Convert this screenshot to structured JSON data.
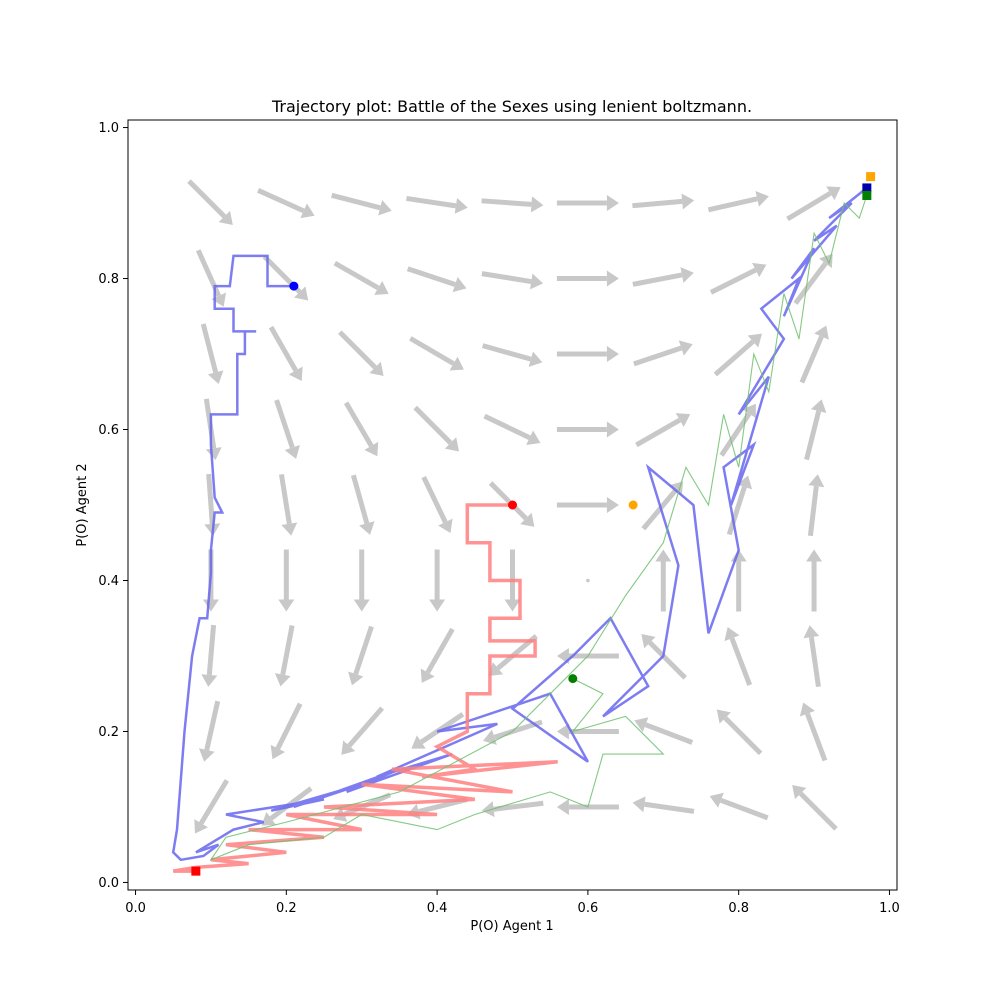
{
  "chart_data": {
    "type": "line",
    "title": "Trajectory plot: Battle of the Sexes using lenient boltzmann.",
    "xlabel": "P(O) Agent 1",
    "ylabel": "P(O) Agent 2",
    "xlim": [
      -0.01,
      1.01
    ],
    "ylim": [
      -0.01,
      1.01
    ],
    "x_ticks": [
      "0.0",
      "0.2",
      "0.4",
      "0.6",
      "0.8",
      "1.0"
    ],
    "y_ticks": [
      "0.0",
      "0.2",
      "0.4",
      "0.6",
      "0.8",
      "1.0"
    ],
    "grid": false,
    "legend": "none",
    "quiver_color": "#c8c8c8",
    "series": [
      {
        "color": "#6666ee",
        "start": [
          0.21,
          0.79
        ],
        "end": [
          0.97,
          0.92
        ],
        "points": [
          [
            0.21,
            0.79
          ],
          [
            0.175,
            0.79
          ],
          [
            0.175,
            0.83
          ],
          [
            0.13,
            0.83
          ],
          [
            0.125,
            0.79
          ],
          [
            0.105,
            0.79
          ],
          [
            0.105,
            0.76
          ],
          [
            0.13,
            0.76
          ],
          [
            0.13,
            0.73
          ],
          [
            0.16,
            0.73
          ],
          [
            0.145,
            0.73
          ],
          [
            0.145,
            0.7
          ],
          [
            0.135,
            0.7
          ],
          [
            0.135,
            0.62
          ],
          [
            0.1,
            0.62
          ],
          [
            0.1,
            0.58
          ],
          [
            0.105,
            0.51
          ],
          [
            0.115,
            0.49
          ],
          [
            0.105,
            0.49
          ],
          [
            0.1,
            0.44
          ],
          [
            0.1,
            0.41
          ],
          [
            0.095,
            0.35
          ],
          [
            0.085,
            0.35
          ],
          [
            0.075,
            0.3
          ],
          [
            0.065,
            0.2
          ],
          [
            0.055,
            0.07
          ],
          [
            0.05,
            0.04
          ],
          [
            0.06,
            0.03
          ],
          [
            0.09,
            0.035
          ],
          [
            0.11,
            0.05
          ],
          [
            0.08,
            0.04
          ],
          [
            0.13,
            0.07
          ],
          [
            0.17,
            0.08
          ],
          [
            0.12,
            0.09
          ],
          [
            0.25,
            0.11
          ],
          [
            0.18,
            0.095
          ],
          [
            0.3,
            0.13
          ],
          [
            0.21,
            0.1
          ],
          [
            0.35,
            0.15
          ],
          [
            0.28,
            0.12
          ],
          [
            0.42,
            0.17
          ],
          [
            0.32,
            0.14
          ],
          [
            0.48,
            0.21
          ],
          [
            0.4,
            0.2
          ],
          [
            0.55,
            0.25
          ],
          [
            0.6,
            0.16
          ],
          [
            0.5,
            0.23
          ],
          [
            0.58,
            0.3
          ],
          [
            0.63,
            0.35
          ],
          [
            0.68,
            0.26
          ],
          [
            0.62,
            0.22
          ],
          [
            0.7,
            0.3
          ],
          [
            0.72,
            0.42
          ],
          [
            0.68,
            0.55
          ],
          [
            0.74,
            0.5
          ],
          [
            0.76,
            0.33
          ],
          [
            0.8,
            0.44
          ],
          [
            0.78,
            0.55
          ],
          [
            0.82,
            0.58
          ],
          [
            0.79,
            0.5
          ],
          [
            0.84,
            0.67
          ],
          [
            0.8,
            0.62
          ],
          [
            0.86,
            0.72
          ],
          [
            0.83,
            0.76
          ],
          [
            0.88,
            0.8
          ],
          [
            0.86,
            0.75
          ],
          [
            0.9,
            0.84
          ],
          [
            0.87,
            0.8
          ],
          [
            0.93,
            0.87
          ],
          [
            0.9,
            0.85
          ],
          [
            0.95,
            0.9
          ],
          [
            0.92,
            0.88
          ],
          [
            0.97,
            0.92
          ]
        ]
      },
      {
        "color": "#ff8080",
        "start": [
          0.5,
          0.5
        ],
        "end": [
          0.08,
          0.015
        ],
        "points": [
          [
            0.5,
            0.5
          ],
          [
            0.44,
            0.5
          ],
          [
            0.44,
            0.45
          ],
          [
            0.47,
            0.45
          ],
          [
            0.47,
            0.4
          ],
          [
            0.51,
            0.4
          ],
          [
            0.51,
            0.35
          ],
          [
            0.47,
            0.35
          ],
          [
            0.47,
            0.32
          ],
          [
            0.53,
            0.32
          ],
          [
            0.53,
            0.3
          ],
          [
            0.47,
            0.3
          ],
          [
            0.47,
            0.25
          ],
          [
            0.44,
            0.25
          ],
          [
            0.44,
            0.2
          ],
          [
            0.4,
            0.18
          ],
          [
            0.45,
            0.15
          ],
          [
            0.38,
            0.14
          ],
          [
            0.56,
            0.16
          ],
          [
            0.34,
            0.15
          ],
          [
            0.5,
            0.12
          ],
          [
            0.3,
            0.13
          ],
          [
            0.45,
            0.11
          ],
          [
            0.25,
            0.1
          ],
          [
            0.4,
            0.09
          ],
          [
            0.2,
            0.09
          ],
          [
            0.3,
            0.07
          ],
          [
            0.15,
            0.07
          ],
          [
            0.25,
            0.06
          ],
          [
            0.12,
            0.05
          ],
          [
            0.2,
            0.04
          ],
          [
            0.1,
            0.03
          ],
          [
            0.15,
            0.025
          ],
          [
            0.08,
            0.02
          ],
          [
            0.05,
            0.015
          ],
          [
            0.08,
            0.015
          ]
        ]
      },
      {
        "color": "#6fbf6f",
        "start": [
          0.58,
          0.27
        ],
        "end": [
          0.97,
          0.91
        ],
        "points": [
          [
            0.58,
            0.27
          ],
          [
            0.62,
            0.25
          ],
          [
            0.58,
            0.2
          ],
          [
            0.65,
            0.22
          ],
          [
            0.7,
            0.17
          ],
          [
            0.62,
            0.17
          ],
          [
            0.6,
            0.1
          ],
          [
            0.55,
            0.12
          ],
          [
            0.45,
            0.09
          ],
          [
            0.4,
            0.07
          ],
          [
            0.3,
            0.09
          ],
          [
            0.25,
            0.06
          ],
          [
            0.15,
            0.05
          ],
          [
            0.1,
            0.03
          ],
          [
            0.12,
            0.06
          ],
          [
            0.2,
            0.08
          ],
          [
            0.35,
            0.12
          ],
          [
            0.5,
            0.2
          ],
          [
            0.6,
            0.3
          ],
          [
            0.65,
            0.38
          ],
          [
            0.7,
            0.45
          ],
          [
            0.73,
            0.55
          ],
          [
            0.76,
            0.5
          ],
          [
            0.78,
            0.62
          ],
          [
            0.8,
            0.55
          ],
          [
            0.82,
            0.7
          ],
          [
            0.84,
            0.65
          ],
          [
            0.86,
            0.78
          ],
          [
            0.88,
            0.72
          ],
          [
            0.9,
            0.86
          ],
          [
            0.92,
            0.82
          ],
          [
            0.94,
            0.9
          ],
          [
            0.96,
            0.88
          ],
          [
            0.97,
            0.91
          ]
        ]
      },
      {
        "color": "#ffa500",
        "start": [
          0.66,
          0.5
        ],
        "end": [
          0.975,
          0.935
        ],
        "points": []
      }
    ]
  }
}
